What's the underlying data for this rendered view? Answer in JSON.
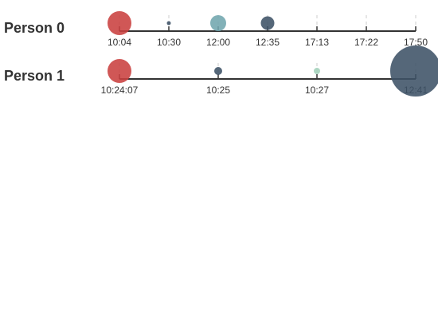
{
  "chart_data": {
    "type": "scatter",
    "title": "",
    "xlabel": "",
    "ylabel": "",
    "grid": true,
    "palette": {
      "red": "#c9403f",
      "slate": "#3e5266",
      "teal": "#71a6ae",
      "mint": "#a3d1bb"
    },
    "rows": [
      {
        "label": "Person 0",
        "ticks": [
          "10:04",
          "10:30",
          "12:00",
          "12:35",
          "17:13",
          "17:22",
          "17:50"
        ],
        "points": [
          {
            "tick": 0,
            "size": 15,
            "color": "red"
          },
          {
            "tick": 1,
            "size": 2.5,
            "color": "slate"
          },
          {
            "tick": 2,
            "size": 10,
            "color": "teal"
          },
          {
            "tick": 3,
            "size": 8.5,
            "color": "slate"
          }
        ]
      },
      {
        "label": "Person 1",
        "ticks": [
          "10:24:07",
          "10:25",
          "10:27",
          "12:41"
        ],
        "points": [
          {
            "tick": 0,
            "size": 15,
            "color": "red"
          },
          {
            "tick": 1,
            "size": 5,
            "color": "slate"
          },
          {
            "tick": 2,
            "size": 4,
            "color": "mint"
          },
          {
            "tick": 3,
            "size": 32,
            "color": "slate"
          }
        ]
      }
    ]
  }
}
